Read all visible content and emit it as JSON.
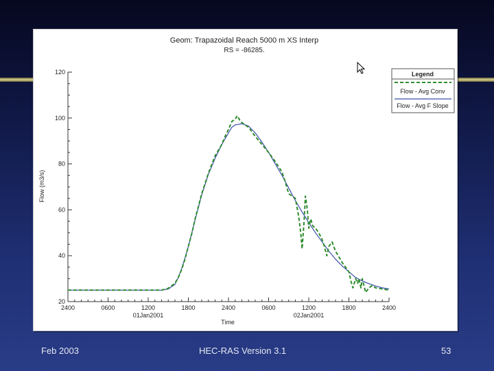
{
  "slide": {
    "footer_left": "Feb 2003",
    "footer_center": "HEC-RAS Version 3.1",
    "page_number": "53"
  },
  "colors": {
    "avg_conv": "#2e8b2e",
    "avg_f_slope": "#3b4fa8",
    "background_top": "#06081f",
    "background_bottom": "#293c87"
  },
  "chart_data": {
    "type": "line",
    "title": "Geom: Trapazoidal Reach 5000 m XS Interp",
    "subtitle": "RS = -86285.",
    "xlabel": "Time",
    "ylabel": "Flow (m3/s)",
    "ylim": [
      20,
      120
    ],
    "xlim": [
      0,
      48
    ],
    "grid": false,
    "legend_position": "top-right",
    "legend_title": "Legend",
    "x_tick_labels": [
      {
        "x": 0,
        "label": "2400",
        "date": ""
      },
      {
        "x": 6,
        "label": "0600",
        "date": ""
      },
      {
        "x": 12,
        "label": "1200",
        "date": "01Jan2001"
      },
      {
        "x": 18,
        "label": "1800",
        "date": ""
      },
      {
        "x": 24,
        "label": "2400",
        "date": ""
      },
      {
        "x": 30,
        "label": "0600",
        "date": ""
      },
      {
        "x": 36,
        "label": "1200",
        "date": "02Jan2001"
      },
      {
        "x": 42,
        "label": "1800",
        "date": ""
      },
      {
        "x": 48,
        "label": "2400",
        "date": ""
      }
    ],
    "y_ticks": [
      20,
      40,
      60,
      80,
      100,
      120
    ],
    "series": [
      {
        "name": "Flow - Avg Conv",
        "style": "dashed",
        "x": [
          0,
          4,
          8,
          12,
          14,
          15,
          16,
          16.5,
          17,
          17.5,
          18,
          18.5,
          19,
          20,
          21,
          22,
          23,
          23.5,
          24,
          24.5,
          25,
          25.3,
          25.7,
          26,
          27,
          28,
          29,
          30,
          31,
          32,
          32.5,
          33,
          34,
          34.5,
          34.8,
          35,
          35.3,
          35.5,
          35.8,
          36,
          36.3,
          36.6,
          37,
          37.5,
          38,
          38.3,
          38.7,
          39,
          39.5,
          40,
          41,
          42,
          42.3,
          42.6,
          43,
          43.3,
          43.5,
          43.8,
          44,
          44.5,
          45,
          45.5,
          46,
          47,
          48
        ],
        "y": [
          25,
          25,
          25,
          25,
          25,
          25.8,
          28,
          30.5,
          34,
          38.5,
          44,
          49.5,
          56,
          67,
          76,
          83.5,
          88.5,
          92,
          95,
          98.5,
          99.5,
          101,
          99,
          98,
          96,
          92,
          88.5,
          85,
          81,
          76.5,
          72,
          67,
          65,
          57,
          50,
          43,
          55,
          66,
          60,
          52,
          56,
          53,
          52,
          50,
          47,
          44.5,
          40,
          44,
          46,
          42,
          37,
          33,
          29,
          26,
          30,
          28,
          30,
          26,
          30,
          24,
          26,
          27,
          26,
          25.5,
          25
        ]
      },
      {
        "name": "Flow - Avg F Slope",
        "style": "solid",
        "x": [
          0,
          4,
          8,
          12,
          14,
          15,
          16,
          16.5,
          17,
          17.5,
          18,
          19,
          20,
          21,
          22,
          23,
          24,
          24.5,
          25,
          26,
          27,
          28,
          29,
          30,
          31,
          32,
          33,
          34,
          35,
          36,
          37,
          38,
          39,
          40,
          41,
          42,
          43,
          44,
          45,
          46,
          47,
          48
        ],
        "y": [
          25,
          25,
          25,
          25,
          25,
          25.5,
          27.5,
          30.5,
          34.5,
          39,
          44,
          55.5,
          66.5,
          75.5,
          82.5,
          88.5,
          93.5,
          96,
          97,
          97.5,
          96.5,
          93.5,
          89.5,
          85,
          80,
          75,
          69.5,
          64,
          59,
          54.5,
          50,
          46,
          42,
          38.5,
          35.5,
          33,
          30.5,
          29,
          27.8,
          26.8,
          26,
          25.5
        ]
      }
    ]
  }
}
